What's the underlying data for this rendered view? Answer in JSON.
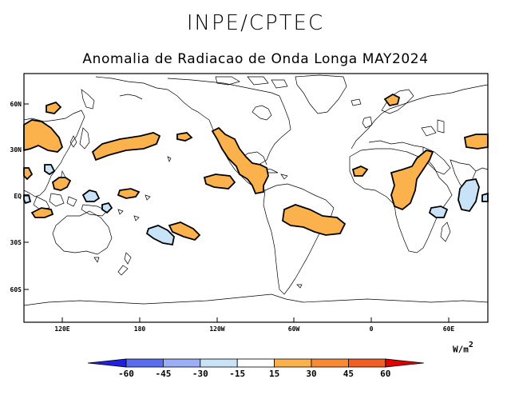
{
  "header": {
    "organization": "INPE/CPTEC",
    "title": "Anomalia de Radiacao de Onda Longa MAY2024"
  },
  "map": {
    "lat_labels": [
      "60N",
      "30N",
      "EQ",
      "30S",
      "60S"
    ],
    "lon_labels": [
      "120E",
      "180",
      "120W",
      "60W",
      "0",
      "60E"
    ],
    "units_base": "W/m",
    "units_exp": "2"
  },
  "legend": {
    "labels": [
      "-60",
      "-45",
      "-30",
      "-15",
      "15",
      "30",
      "45",
      "60"
    ],
    "colors": [
      "#2020e0",
      "#5a6cf0",
      "#9aaff8",
      "#c8e2f8",
      "#ffffff",
      "#fcb24c",
      "#f88a36",
      "#f05e24",
      "#e00000"
    ]
  },
  "colors": {
    "positive_anomaly": "#fcb24c",
    "negative_anomaly": "#c8e2f8",
    "coast": "#000000"
  }
}
